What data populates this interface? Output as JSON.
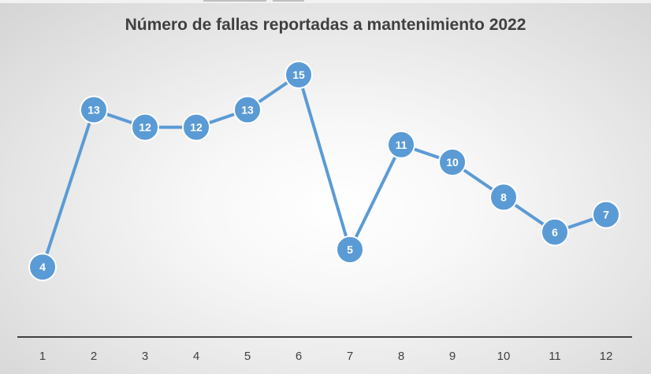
{
  "chart_data": {
    "type": "line",
    "title": "Número de fallas reportadas a mantenimiento 2022",
    "categories": [
      "1",
      "2",
      "3",
      "4",
      "5",
      "6",
      "7",
      "8",
      "9",
      "10",
      "11",
      "12"
    ],
    "series": [
      {
        "values": [
          4,
          13,
          12,
          12,
          13,
          15,
          5,
          11,
          10,
          8,
          6,
          7
        ]
      }
    ],
    "ylim": [
      0,
      20
    ],
    "grid": false,
    "legend": "none",
    "data_labels": true,
    "colors": {
      "line": "#5b9bd5",
      "marker": "#5b9bd5",
      "marker_border": "#ffffff",
      "label": "#ffffff",
      "axis": "#404040"
    }
  }
}
